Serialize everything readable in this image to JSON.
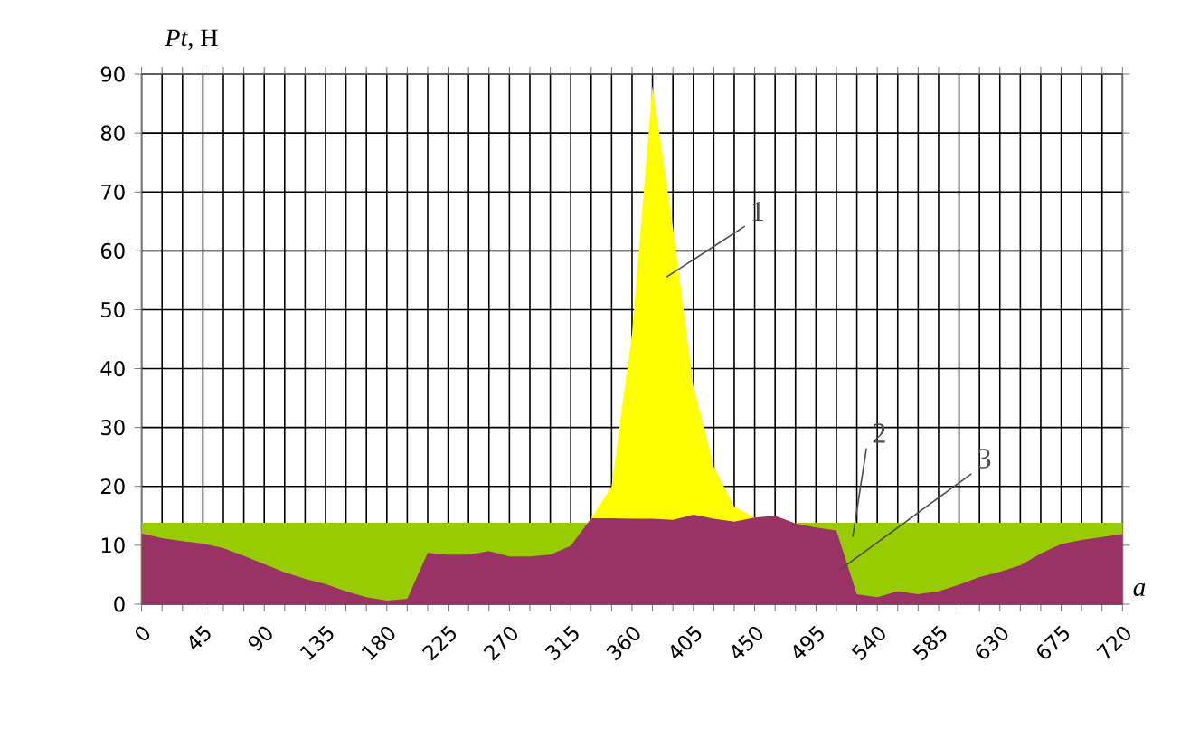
{
  "chart_data": {
    "type": "area",
    "ylabel": "*Pt*, Н",
    "xlabel": "a",
    "x": [
      0,
      15,
      30,
      45,
      60,
      75,
      90,
      105,
      120,
      135,
      150,
      165,
      180,
      195,
      210,
      225,
      240,
      255,
      270,
      285,
      300,
      315,
      330,
      345,
      360,
      375,
      390,
      405,
      420,
      435,
      450,
      465,
      480,
      495,
      510,
      525,
      540,
      555,
      570,
      585,
      600,
      615,
      630,
      645,
      660,
      675,
      690,
      705,
      720
    ],
    "series": [
      {
        "color": "#ffff00",
        "values": [
          null,
          null,
          null,
          null,
          null,
          null,
          null,
          null,
          null,
          null,
          null,
          null,
          null,
          null,
          null,
          null,
          null,
          null,
          null,
          null,
          null,
          null,
          14.6,
          20,
          46,
          88,
          64,
          37,
          23.3,
          16.6,
          14.7,
          15.0,
          null,
          null,
          null,
          null,
          null,
          null,
          null,
          null,
          null,
          null,
          null,
          null,
          null,
          null,
          null,
          null,
          null
        ]
      },
      {
        "color": "#99cc00",
        "values": [
          13.8,
          13.8,
          13.8,
          13.8,
          13.8,
          13.8,
          13.8,
          13.8,
          13.8,
          13.8,
          13.8,
          13.8,
          13.8,
          13.8,
          13.8,
          13.8,
          13.8,
          13.8,
          13.8,
          13.8,
          13.8,
          13.8,
          13.8,
          null,
          null,
          null,
          null,
          null,
          null,
          null,
          null,
          null,
          13.8,
          13.8,
          13.8,
          13.8,
          13.8,
          13.8,
          13.8,
          13.8,
          13.8,
          13.8,
          13.8,
          13.8,
          13.8,
          13.8,
          13.8,
          13.8,
          13.8
        ]
      },
      {
        "color": "#993366",
        "values": [
          12.0,
          11.2,
          10.7,
          10.3,
          9.5,
          8.2,
          6.8,
          5.4,
          4.3,
          3.4,
          2.2,
          1.2,
          0.6,
          0.9,
          8.7,
          8.4,
          8.4,
          9.0,
          8.1,
          8.1,
          8.4,
          9.9,
          14.6,
          14.6,
          14.5,
          14.5,
          14.3,
          15.2,
          14.5,
          14.0,
          14.7,
          15.0,
          13.7,
          13.0,
          12.5,
          1.7,
          1.2,
          2.2,
          1.7,
          2.2,
          3.3,
          4.6,
          5.5,
          6.6,
          8.6,
          10.2,
          10.9,
          11.4,
          11.9
        ]
      }
    ],
    "xlim": [
      0,
      720
    ],
    "xticks": [
      0,
      {
        "value": 15,
        "label": null
      },
      {
        "value": 30,
        "label": null
      },
      45,
      {
        "value": 60,
        "label": null
      },
      {
        "value": 75,
        "label": null
      },
      90,
      {
        "value": 105,
        "label": null
      },
      {
        "value": 120,
        "label": null
      },
      135,
      {
        "value": 150,
        "label": null
      },
      {
        "value": 165,
        "label": null
      },
      180,
      {
        "value": 195,
        "label": null
      },
      {
        "value": 210,
        "label": null
      },
      225,
      {
        "value": 240,
        "label": null
      },
      {
        "value": 255,
        "label": null
      },
      270,
      {
        "value": 285,
        "label": null
      },
      {
        "value": 300,
        "label": null
      },
      315,
      {
        "value": 330,
        "label": null
      },
      {
        "value": 345,
        "label": null
      },
      360,
      {
        "value": 375,
        "label": null
      },
      {
        "value": 390,
        "label": null
      },
      405,
      {
        "value": 420,
        "label": null
      },
      {
        "value": 435,
        "label": null
      },
      450,
      {
        "value": 465,
        "label": null
      },
      {
        "value": 480,
        "label": null
      },
      495,
      {
        "value": 510,
        "label": null
      },
      {
        "value": 525,
        "label": null
      },
      540,
      {
        "value": 555,
        "label": null
      },
      {
        "value": 570,
        "label": null
      },
      585,
      {
        "value": 600,
        "label": null
      },
      {
        "value": 615,
        "label": null
      },
      630,
      {
        "value": 645,
        "label": null
      },
      {
        "value": 660,
        "label": null
      },
      675,
      {
        "value": 690,
        "label": null
      },
      {
        "value": 705,
        "label": null
      },
      720
    ],
    "ylim": [
      0,
      90
    ],
    "yticks": [
      0,
      10,
      20,
      30,
      40,
      50,
      60,
      70,
      80,
      90
    ],
    "grid": true,
    "annotations": [
      "1",
      "2",
      "3"
    ]
  }
}
